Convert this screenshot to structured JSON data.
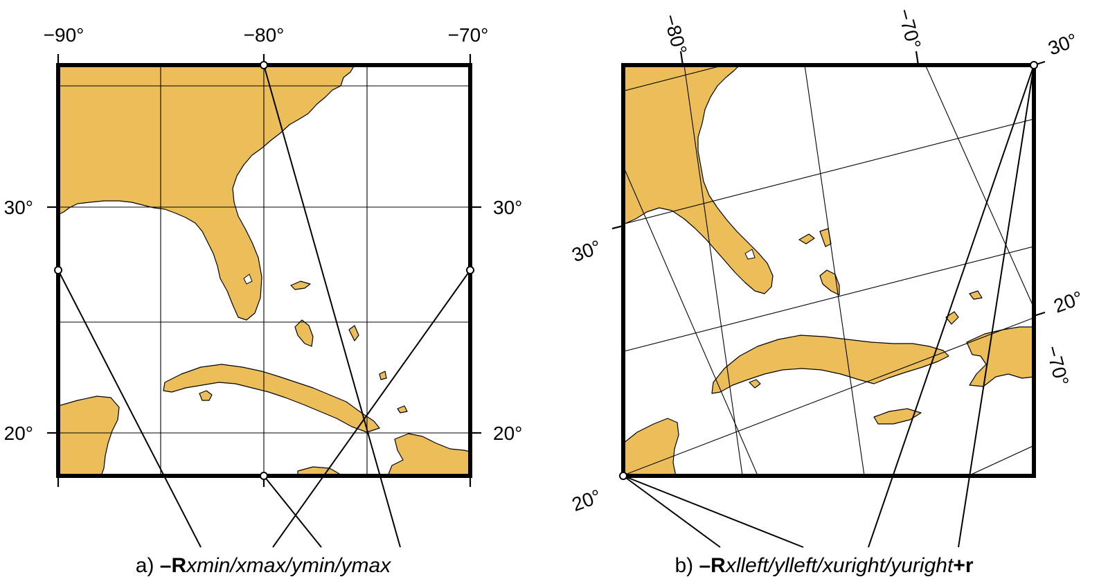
{
  "colors": {
    "land": "#ebbe5a",
    "ocean": "#ffffff",
    "ink": "#000000"
  },
  "map_a": {
    "top_labels": [
      "−90°",
      "−80°",
      "−70°"
    ],
    "left_labels": [
      "30°",
      "20°"
    ],
    "right_labels": [
      "30°",
      "20°"
    ],
    "caption": {
      "prefix": "a) ",
      "flag": "–R",
      "args": "xmin/xmax/ymin/ymax"
    }
  },
  "map_b": {
    "top_labels": [
      "−80°",
      "−70°"
    ],
    "corner_lat_label": "30°",
    "left_labels": [
      "30°",
      "20°"
    ],
    "right_labels": [
      "20°",
      "−70°"
    ],
    "caption": {
      "prefix": "b) ",
      "flag": "–R",
      "args": "xlleft/ylleft/xuright/yuright",
      "suffix": "+r"
    }
  }
}
